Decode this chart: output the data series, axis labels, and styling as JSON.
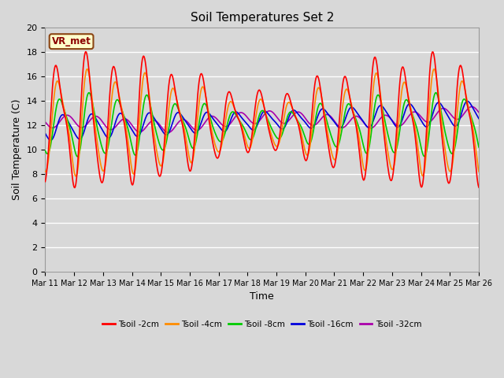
{
  "title": "Soil Temperatures Set 2",
  "xlabel": "Time",
  "ylabel": "Soil Temperature (C)",
  "ylim": [
    0,
    20
  ],
  "yticks": [
    0,
    2,
    4,
    6,
    8,
    10,
    12,
    14,
    16,
    18,
    20
  ],
  "background_color": "#d8d8d8",
  "plot_bg_color": "#d8d8d8",
  "series_colors": [
    "#ff0000",
    "#ff8c00",
    "#00cc00",
    "#0000dd",
    "#aa00aa"
  ],
  "series_labels": [
    "Tsoil -2cm",
    "Tsoil -4cm",
    "Tsoil -8cm",
    "Tsoil -16cm",
    "Tsoil -32cm"
  ],
  "xtick_labels": [
    "Mar 11",
    "Mar 12",
    "Mar 13",
    "Mar 14",
    "Mar 15",
    "Mar 16",
    "Mar 17",
    "Mar 18",
    "Mar 19",
    "Mar 20",
    "Mar 21",
    "Mar 22",
    "Mar 23",
    "Mar 24",
    "Mar 25",
    "Mar 26"
  ],
  "vr_met_label": "VR_met",
  "line_width": 1.2,
  "grid_color": "#ffffff",
  "grid_linewidth": 1.0
}
